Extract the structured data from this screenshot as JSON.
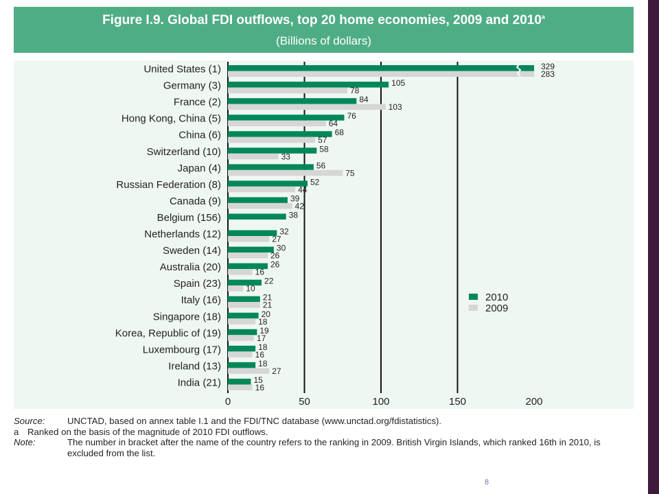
{
  "figure": {
    "title": "Figure I.9.  Global FDI outflows, top 20 home economies, 2009 and 2010",
    "title_marker": "a",
    "subtitle": "(Billions of dollars)"
  },
  "chart_data": {
    "type": "bar",
    "orientation": "horizontal",
    "categories": [
      "United States (1)",
      "Germany (3)",
      "France (2)",
      "Hong Kong, China (5)",
      "China (6)",
      "Switzerland (10)",
      "Japan (4)",
      "Russian Federation (8)",
      "Canada (9)",
      "Belgium (156)",
      "Netherlands (12)",
      "Sweden (14)",
      "Australia (20)",
      "Spain (23)",
      "Italy (16)",
      "Singapore (18)",
      "Korea, Republic of (19)",
      "Luxembourg (17)",
      "Ireland (13)",
      "India (21)"
    ],
    "series": [
      {
        "name": "2010",
        "color": "#00875a",
        "values": [
          329,
          105,
          84,
          76,
          68,
          58,
          56,
          52,
          39,
          38,
          32,
          30,
          26,
          22,
          21,
          20,
          19,
          18,
          18,
          15
        ]
      },
      {
        "name": "2009",
        "color": "#d6d6d6",
        "values": [
          283,
          78,
          103,
          64,
          57,
          33,
          75,
          44,
          42,
          null,
          27,
          26,
          16,
          10,
          21,
          18,
          17,
          16,
          27,
          16
        ]
      }
    ],
    "xlim": [
      0,
      200
    ],
    "xticks": [
      "0",
      "50",
      "100",
      "150",
      "200"
    ],
    "axis_break": "bars exceeding 200 are truncated with a break mark",
    "gridlines": "vertical at 50, 100, 150",
    "legend_position": "right"
  },
  "notes": [
    {
      "key": "Source:",
      "text": "UNCTAD, based on annex table I.1 and the FDI/TNC database (www.unctad.org/fdistatistics)."
    },
    {
      "key": "a",
      "text": "Ranked on the basis of the magnitude of 2010 FDI outflows."
    },
    {
      "key": "Note:",
      "text": "The number in bracket after the name of the country refers to the ranking in 2009. British Virgin Islands, which ranked 16th in 2010, is excluded from the list."
    }
  ],
  "page_number": "8"
}
